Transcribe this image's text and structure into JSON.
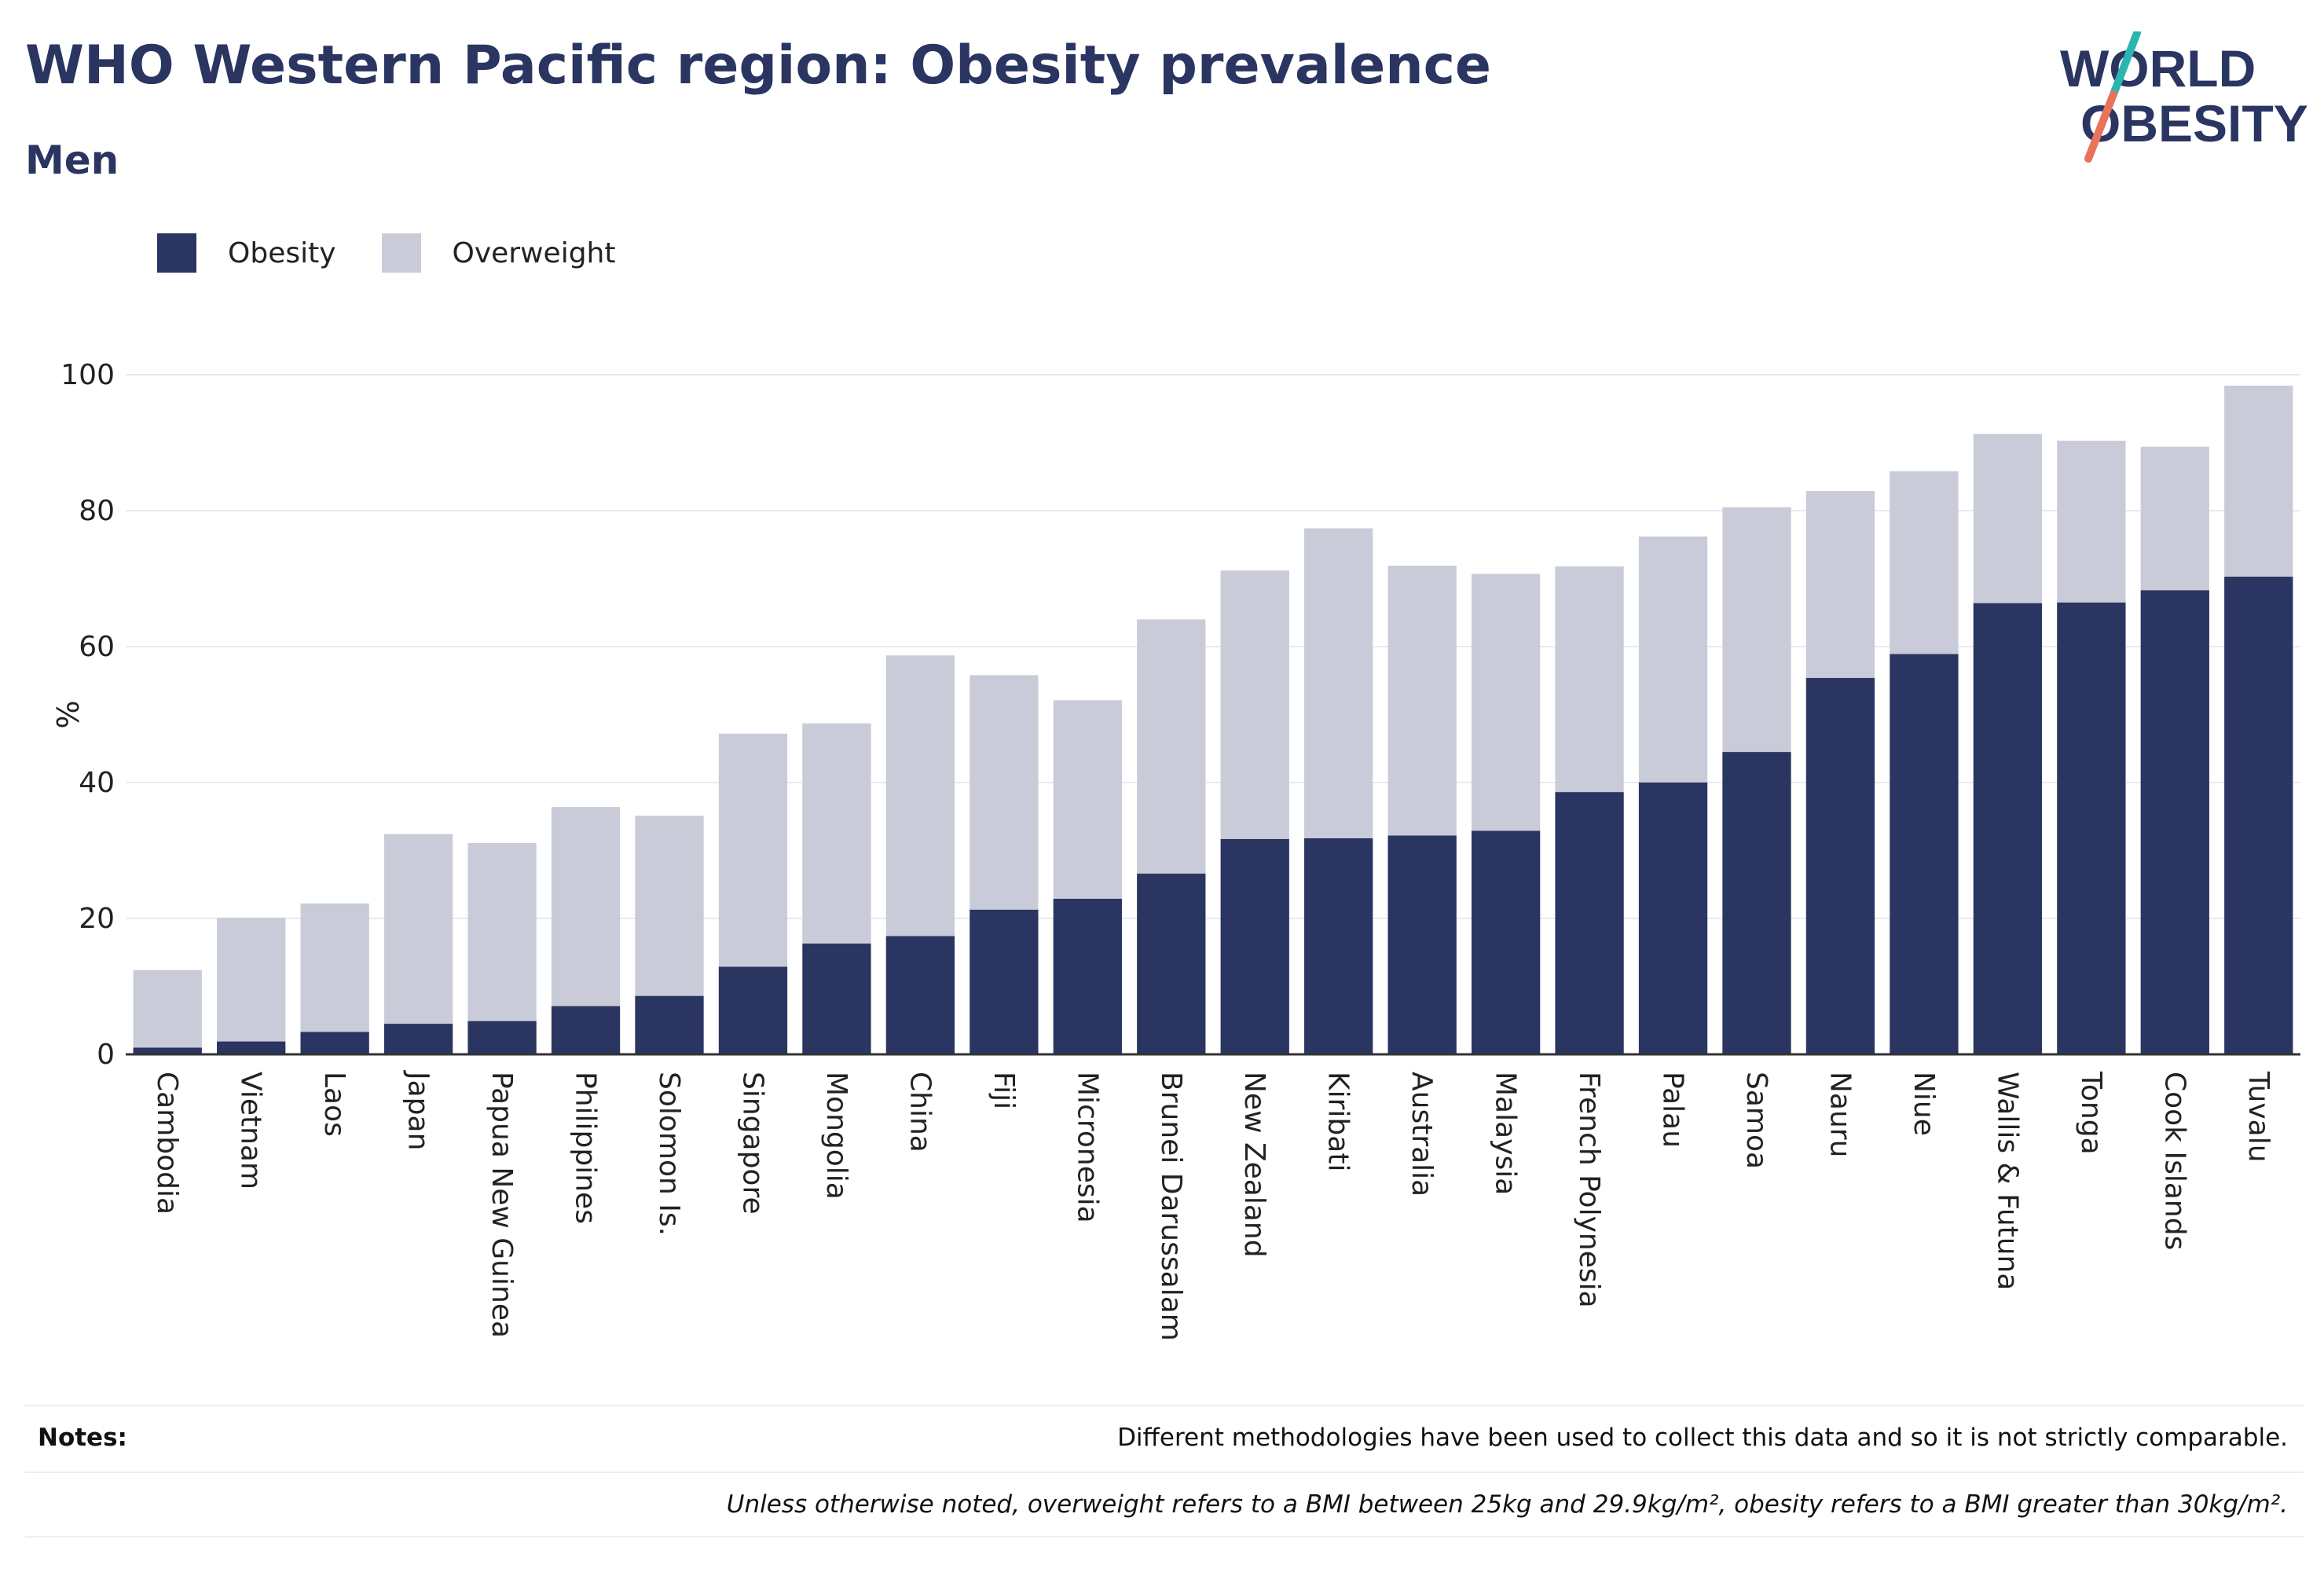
{
  "header": {
    "title": "WHO Western Pacific region: Obesity prevalence",
    "subtitle": "Men"
  },
  "logo": {
    "line1": "WORLD",
    "line2": "OBESITY",
    "accent_colors": [
      "#2bb5b0",
      "#e8735a"
    ],
    "text_color": "#2a3561"
  },
  "legend": {
    "items": [
      {
        "label": "Obesity",
        "color": "#2a3561"
      },
      {
        "label": "Overweight",
        "color": "#c9ccd8"
      }
    ]
  },
  "chart_data": {
    "type": "bar",
    "stacked": true,
    "ylabel": "%",
    "xlabel": "",
    "ylim": [
      0,
      100
    ],
    "yticks": [
      0,
      20,
      40,
      60,
      80,
      100
    ],
    "grid": true,
    "legend_position": "top-left",
    "categories": [
      "Cambodia",
      "Vietnam",
      "Laos",
      "Japan",
      "Papua New Guinea",
      "Philippines",
      "Solomon Is.",
      "Singapore",
      "Mongolia",
      "China",
      "Fiji",
      "Micronesia",
      "Brunei Darussalam",
      "New Zealand",
      "Kiribati",
      "Australia",
      "Malaysia",
      "French Polynesia",
      "Palau",
      "Samoa",
      "Nauru",
      "Niue",
      "Wallis & Futuna",
      "Tonga",
      "Cook Islands",
      "Tuvalu"
    ],
    "series": [
      {
        "name": "Obesity",
        "color": "#2a3561",
        "values": [
          1.0,
          1.9,
          3.3,
          4.5,
          4.9,
          7.1,
          8.6,
          12.9,
          16.3,
          17.4,
          21.3,
          22.9,
          26.6,
          31.7,
          31.8,
          32.2,
          32.9,
          38.6,
          40.0,
          44.5,
          55.4,
          58.9,
          66.4,
          66.5,
          68.3,
          70.3
        ]
      },
      {
        "name": "Overweight",
        "color": "#c9ccd8",
        "values": [
          11.4,
          18.2,
          18.9,
          27.9,
          26.2,
          29.3,
          26.5,
          34.3,
          32.4,
          41.3,
          34.5,
          29.2,
          37.4,
          39.5,
          45.6,
          39.7,
          37.8,
          33.2,
          36.2,
          36.0,
          27.5,
          26.9,
          24.9,
          23.8,
          21.1,
          28.1
        ]
      }
    ]
  },
  "notes": {
    "label": "Notes:",
    "text": "Different methodologies have been used to collect this data and so it is not strictly comparable.",
    "definition": "Unless otherwise noted, overweight refers to a BMI between 25kg and 29.9kg/m², obesity refers to a BMI greater than 30kg/m²."
  }
}
